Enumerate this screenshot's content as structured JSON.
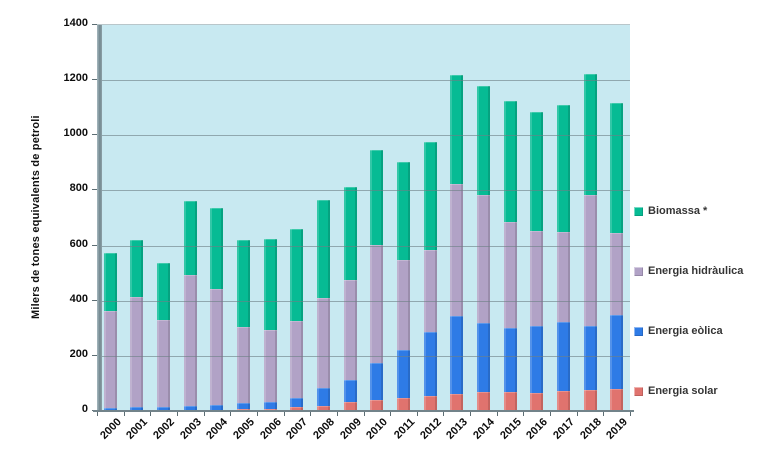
{
  "chart_data": {
    "type": "bar",
    "stacked": true,
    "title": "",
    "ylabel": "Milers de tones equivalents de petroli",
    "xlabel": "",
    "ylim": [
      0,
      1400
    ],
    "yticks": [
      0,
      200,
      400,
      600,
      800,
      1000,
      1200,
      1400
    ],
    "grid": true,
    "plot_bg": "#C8E9F1",
    "gridline_color": "#6E8086",
    "categories": [
      "2000",
      "2001",
      "2002",
      "2003",
      "2004",
      "2005",
      "2006",
      "2007",
      "2008",
      "2009",
      "2010",
      "2011",
      "2012",
      "2013",
      "2014",
      "2015",
      "2016",
      "2017",
      "2018",
      "2019"
    ],
    "series": [
      {
        "name": "Energia solar",
        "color": "#E0736E",
        "values": [
          2,
          3,
          3,
          4,
          5,
          6,
          9,
          13,
          18,
          34,
          41,
          49,
          55,
          62,
          68,
          70,
          67,
          72,
          76,
          79
        ]
      },
      {
        "name": "Energia eòlica",
        "color": "#2E7BE6",
        "values": [
          10,
          13,
          13,
          13,
          17,
          22,
          25,
          36,
          67,
          79,
          134,
          173,
          233,
          283,
          253,
          231,
          242,
          250,
          231,
          270
        ]
      },
      {
        "name": "Energia hidràulica",
        "color": "#B1A2C6",
        "values": [
          349,
          399,
          315,
          478,
          421,
          277,
          261,
          277,
          325,
          363,
          426,
          327,
          297,
          477,
          464,
          386,
          345,
          326,
          475,
          297
        ]
      },
      {
        "name": "Biomassa *",
        "color": "#06BB94",
        "values": [
          212,
          205,
          206,
          265,
          294,
          317,
          330,
          334,
          355,
          337,
          346,
          354,
          392,
          396,
          393,
          437,
          429,
          461,
          440,
          471
        ]
      }
    ],
    "legend": {
      "position": "right",
      "entries": [
        {
          "label": "Biomassa *",
          "color": "#06BB94"
        },
        {
          "label": "Energia hidràulica",
          "color": "#B1A2C6"
        },
        {
          "label": "Energia eòlica",
          "color": "#2E7BE6"
        },
        {
          "label": "Energia solar",
          "color": "#E0736E"
        }
      ]
    }
  }
}
